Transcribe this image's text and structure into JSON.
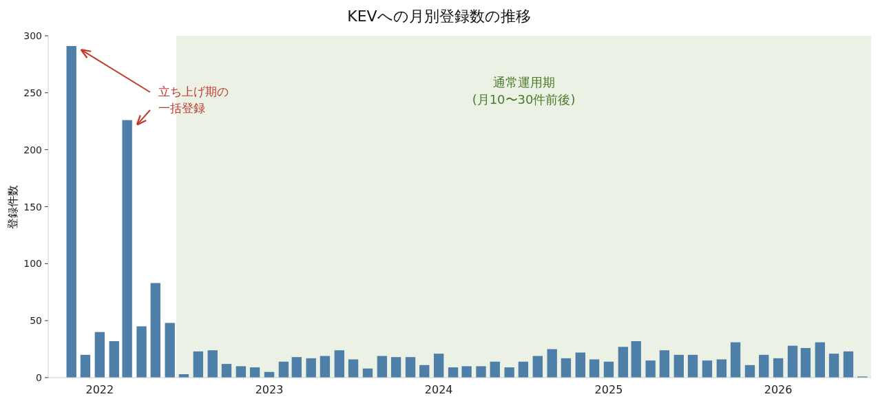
{
  "chart_data": {
    "type": "bar",
    "title": "KEVへの月別登録数の推移",
    "ylabel": "登録件数",
    "x": [
      "2021-11",
      "2021-12",
      "2022-01",
      "2022-02",
      "2022-03",
      "2022-04",
      "2022-05",
      "2022-06",
      "2022-07",
      "2022-08",
      "2022-09",
      "2022-10",
      "2022-11",
      "2022-12",
      "2023-01",
      "2023-02",
      "2023-03",
      "2023-04",
      "2023-05",
      "2023-06",
      "2023-07",
      "2023-08",
      "2023-09",
      "2023-10",
      "2023-11",
      "2023-12",
      "2024-01",
      "2024-02",
      "2024-03",
      "2024-04",
      "2024-05",
      "2024-06",
      "2024-07",
      "2024-08",
      "2024-09",
      "2024-10",
      "2024-11",
      "2024-12",
      "2025-01",
      "2025-02",
      "2025-03",
      "2025-04",
      "2025-05",
      "2025-06",
      "2025-07",
      "2025-08",
      "2025-09",
      "2025-10",
      "2025-11",
      "2025-12",
      "2026-01",
      "2026-02",
      "2026-03",
      "2026-04",
      "2026-05",
      "2026-06",
      "2026-07"
    ],
    "values": [
      291,
      20,
      40,
      32,
      226,
      45,
      83,
      48,
      3,
      23,
      24,
      12,
      10,
      9,
      5,
      14,
      18,
      17,
      19,
      24,
      16,
      8,
      19,
      18,
      18,
      11,
      21,
      9,
      10,
      10,
      14,
      9,
      14,
      19,
      25,
      17,
      22,
      16,
      14,
      27,
      32,
      15,
      24,
      20,
      20,
      15,
      16,
      31,
      11,
      20,
      17,
      28,
      26,
      31,
      21,
      23,
      1
    ],
    "color": "#4e7fa8",
    "xlim": [
      "2021-09-12",
      "2026-07-20"
    ],
    "xticks": [
      {
        "value": "2022-01-01",
        "label": "2022"
      },
      {
        "value": "2023-01-01",
        "label": "2023"
      },
      {
        "value": "2024-01-01",
        "label": "2024"
      },
      {
        "value": "2025-01-01",
        "label": "2025"
      },
      {
        "value": "2026-01-01",
        "label": "2026"
      }
    ],
    "ylim": [
      0,
      300
    ],
    "yticks": [
      0,
      50,
      100,
      150,
      200,
      250,
      300
    ],
    "grid": false,
    "bands": [
      {
        "axis": "x",
        "from": "2022-06-15",
        "to": "2026-07-20",
        "label": "通常運用期\n(月10〜30件前後)",
        "color": "#ecf1e6"
      }
    ],
    "annotations": [
      "立ち上げ期の",
      "一括登録"
    ]
  }
}
